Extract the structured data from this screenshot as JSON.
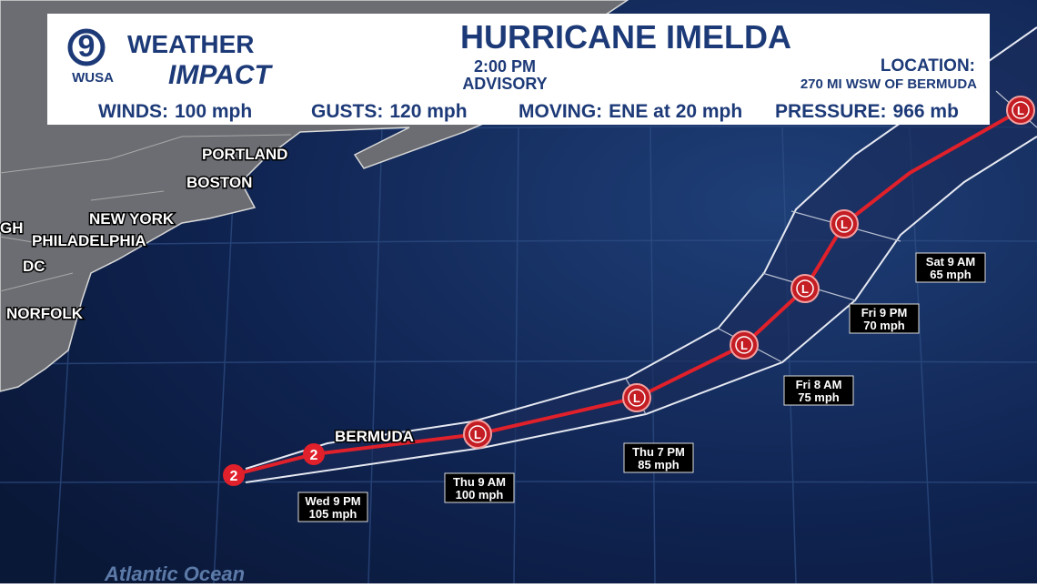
{
  "header": {
    "logo_number": "9",
    "logo_station": "WUSA",
    "logo_word1": "WEATHER",
    "logo_word2": "IMPACT",
    "title": "HURRICANE IMELDA",
    "advisory_time": "2:00 PM",
    "advisory_label": "ADVISORY",
    "location_label": "LOCATION:",
    "location_value": "270 MI WSW OF BERMUDA",
    "stats": [
      {
        "label": "WINDS:",
        "value": "100 mph"
      },
      {
        "label": "GUSTS:",
        "value": "120 mph"
      },
      {
        "label": "MOVING:",
        "value": "ENE at 20 mph"
      },
      {
        "label": "PRESSURE:",
        "value": "966 mb"
      }
    ]
  },
  "map": {
    "cities": [
      "PORTLAND",
      "BOSTON",
      "NEW YORK",
      "GH",
      "PHILADELPHIA",
      "DC",
      "NORFOLK"
    ],
    "island": "BERMUDA",
    "ocean": "Atlantic Ocean",
    "storm_categories": [
      "2",
      "2"
    ],
    "low_symbol": "L",
    "forecasts": [
      {
        "time": "Wed 9 PM",
        "wind": "105 mph"
      },
      {
        "time": "Thu 9 AM",
        "wind": "100 mph"
      },
      {
        "time": "Thu 7 PM",
        "wind": "85 mph"
      },
      {
        "time": "Fri 8 AM",
        "wind": "75 mph"
      },
      {
        "time": "Fri 9 PM",
        "wind": "70 mph"
      },
      {
        "time": "Sat 9 AM",
        "wind": "65 mph"
      }
    ]
  }
}
